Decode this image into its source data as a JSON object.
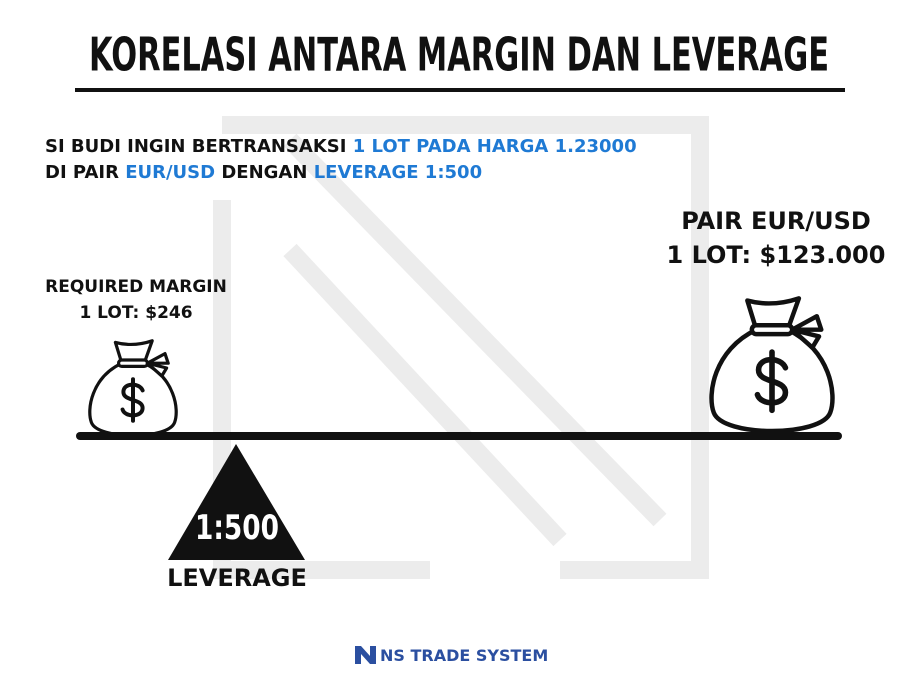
{
  "title": "KORELASI ANTARA MARGIN DAN LEVERAGE",
  "intro": {
    "highlight_color": "#1f7ad4",
    "lines": [
      [
        {
          "text": "SI BUDI INGIN BERTRANSAKSI ",
          "highlight": false
        },
        {
          "text": "1 LOT PADA HARGA 1.23000",
          "highlight": true
        }
      ],
      [
        {
          "text": "DI PAIR ",
          "highlight": false
        },
        {
          "text": "EUR/USD",
          "highlight": true
        },
        {
          "text": " DENGAN ",
          "highlight": false
        },
        {
          "text": "LEVERAGE 1:500",
          "highlight": true
        }
      ]
    ]
  },
  "left": {
    "label": "REQUIRED MARGIN",
    "amount": "1 LOT: $246"
  },
  "right": {
    "label": "PAIR EUR/USD",
    "amount": "1 LOT: $123.000"
  },
  "fulcrum": {
    "ratio": "1:500",
    "label": "LEVERAGE"
  },
  "footer": {
    "brand": "NS TRADE SYSTEM"
  }
}
